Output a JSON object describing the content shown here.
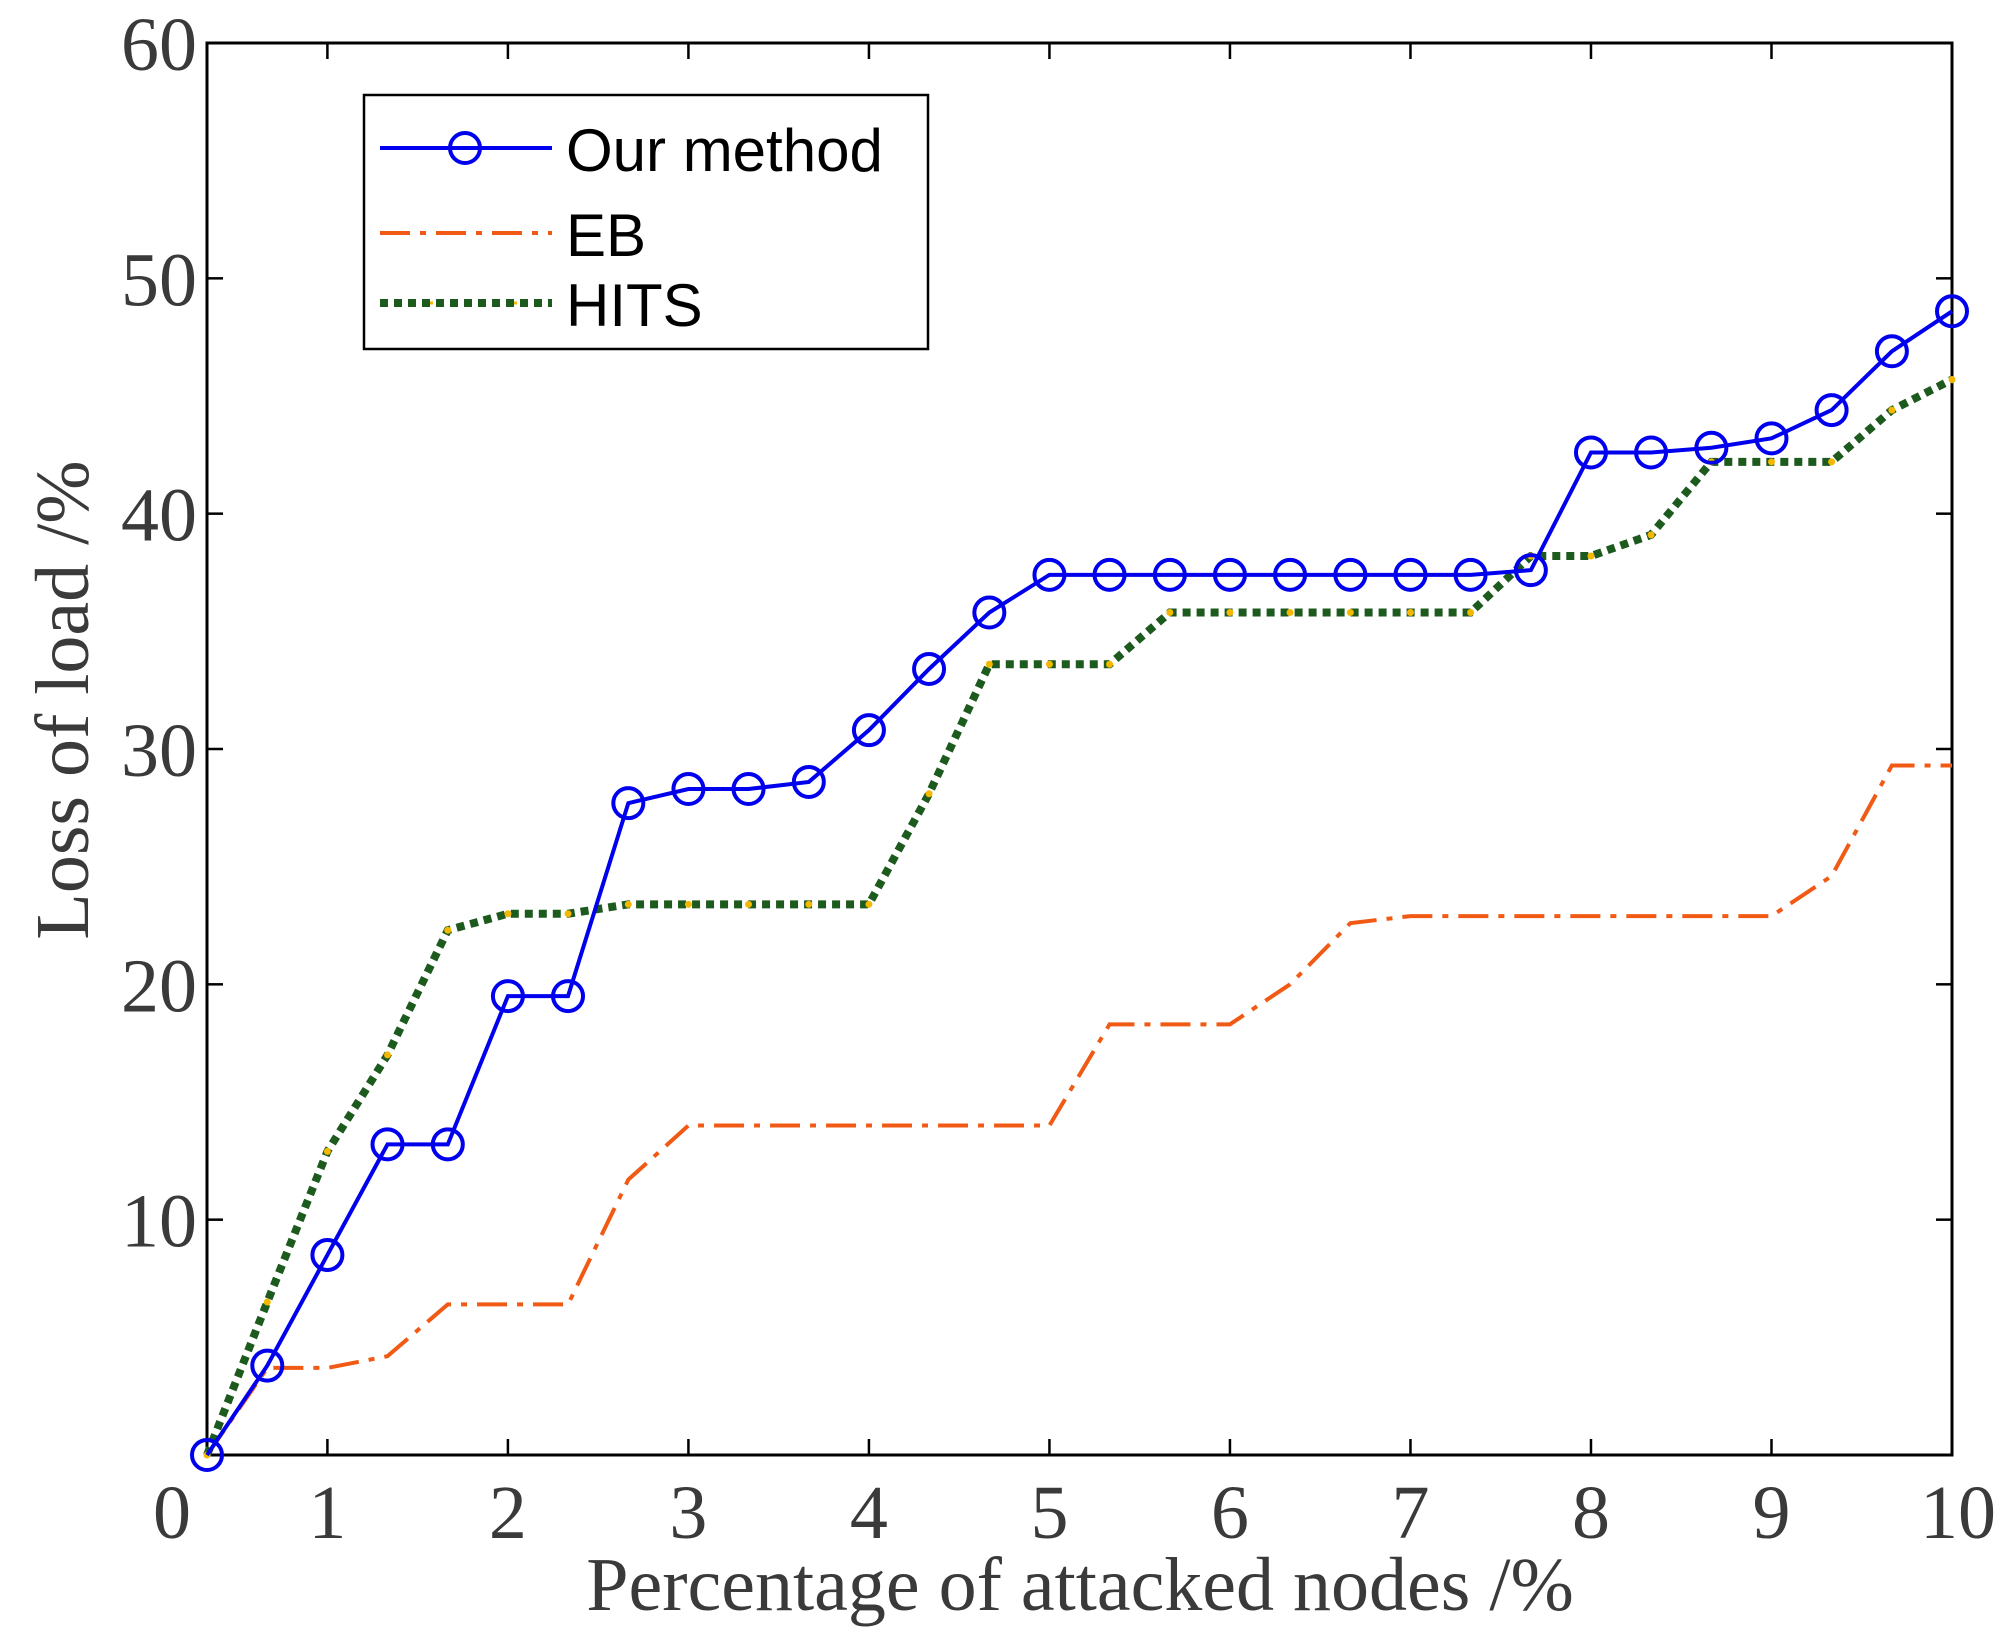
{
  "chart_data": {
    "type": "line",
    "title": "",
    "xlabel": "Percentage of attacked nodes /%",
    "ylabel": "Loss of load /%",
    "xlim": [
      0,
      10
    ],
    "ylim": [
      0,
      60
    ],
    "x_origin": 0.333,
    "xticks": [
      0,
      1,
      2,
      3,
      4,
      5,
      6,
      7,
      8,
      9,
      10
    ],
    "yticks": [
      10,
      20,
      30,
      40,
      50,
      60
    ],
    "xtick_labels": [
      "0",
      "1",
      "2",
      "3",
      "4",
      "5",
      "6",
      "7",
      "8",
      "9",
      "10"
    ],
    "ytick_labels": [
      "10",
      "20",
      "30",
      "40",
      "50",
      "60"
    ],
    "legend_position": "top-left",
    "series": [
      {
        "name": "Our method",
        "color": "#0000ee",
        "style": "solid-circle-markers",
        "x": [
          0.333,
          0.667,
          1.0,
          1.333,
          1.667,
          2.0,
          2.333,
          2.667,
          3.0,
          3.333,
          3.667,
          4.0,
          4.333,
          4.667,
          5.0,
          5.333,
          5.667,
          6.0,
          6.333,
          6.667,
          7.0,
          7.333,
          7.667,
          8.0,
          8.333,
          8.667,
          9.0,
          9.333,
          9.667,
          10.0
        ],
        "values": [
          0.0,
          3.8,
          8.5,
          13.2,
          13.2,
          19.5,
          19.5,
          27.7,
          28.3,
          28.3,
          28.6,
          30.8,
          33.4,
          35.8,
          37.4,
          37.4,
          37.4,
          37.4,
          37.4,
          37.4,
          37.4,
          37.4,
          37.6,
          42.6,
          42.6,
          42.8,
          43.2,
          44.4,
          46.9,
          48.6
        ]
      },
      {
        "name": "EB",
        "color": "#f05a14",
        "style": "dash-dot",
        "x": [
          0.333,
          0.667,
          1.0,
          1.333,
          1.667,
          2.0,
          2.333,
          2.667,
          3.0,
          3.333,
          3.667,
          4.0,
          4.333,
          4.667,
          5.0,
          5.333,
          5.667,
          6.0,
          6.333,
          6.667,
          7.0,
          7.333,
          7.667,
          8.0,
          8.333,
          8.667,
          9.0,
          9.333,
          9.667,
          10.0
        ],
        "values": [
          0.0,
          3.7,
          3.7,
          4.2,
          6.4,
          6.4,
          6.4,
          11.7,
          14.0,
          14.0,
          14.0,
          14.0,
          14.0,
          14.0,
          14.0,
          18.3,
          18.3,
          18.3,
          20.0,
          22.6,
          22.9,
          22.9,
          22.9,
          22.9,
          22.9,
          22.9,
          22.9,
          24.6,
          29.3,
          29.3
        ]
      },
      {
        "name": "HITS",
        "color": "#1d5a1d",
        "dot_color": "#f5b800",
        "style": "dotted",
        "x": [
          0.333,
          0.667,
          1.0,
          1.333,
          1.667,
          2.0,
          2.333,
          2.667,
          3.0,
          3.333,
          3.667,
          4.0,
          4.333,
          4.667,
          5.0,
          5.333,
          5.667,
          6.0,
          6.333,
          6.667,
          7.0,
          7.333,
          7.667,
          8.0,
          8.333,
          8.667,
          9.0,
          9.333,
          9.667,
          10.0
        ],
        "values": [
          0.0,
          6.5,
          12.9,
          17.0,
          22.3,
          23.0,
          23.0,
          23.4,
          23.4,
          23.4,
          23.4,
          23.4,
          28.1,
          33.6,
          33.6,
          33.6,
          35.8,
          35.8,
          35.8,
          35.8,
          35.8,
          35.8,
          38.2,
          38.2,
          39.1,
          42.2,
          42.2,
          42.2,
          44.4,
          45.7
        ]
      }
    ]
  }
}
